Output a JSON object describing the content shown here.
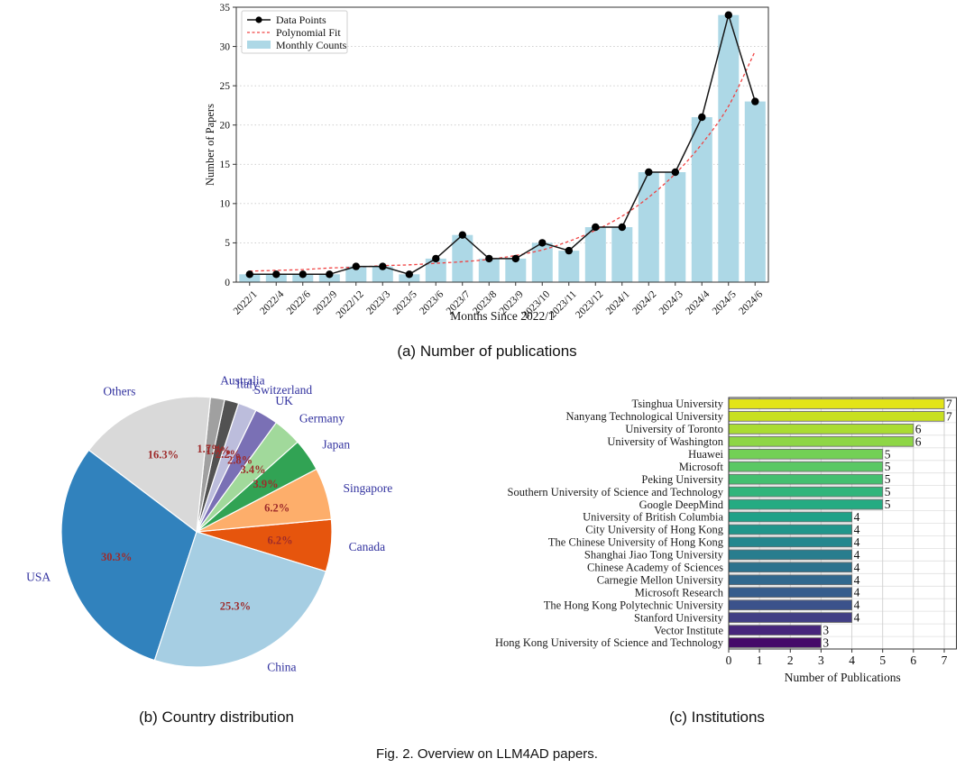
{
  "figure": {
    "caption_a": "(a) Number of publications",
    "caption_b": "(b) Country distribution",
    "caption_c": "(c) Institutions",
    "fig_caption": "Fig. 2. Overview on LLM4AD papers."
  },
  "chart_data": [
    {
      "id": "publications-per-month",
      "type": "bar",
      "xlabel": "Months Since 2022/1",
      "ylabel": "Number of Papers",
      "ylim": [
        0,
        35
      ],
      "yticks": [
        0,
        5,
        10,
        15,
        20,
        25,
        30,
        35
      ],
      "grid": "horizontal-dashed",
      "legend_position": "top-left",
      "categories": [
        "2022/1",
        "2022/4",
        "2022/6",
        "2022/9",
        "2022/12",
        "2023/3",
        "2023/5",
        "2023/6",
        "2023/7",
        "2023/8",
        "2023/9",
        "2023/10",
        "2023/11",
        "2023/12",
        "2024/1",
        "2024/2",
        "2024/3",
        "2024/4",
        "2024/5",
        "2024/6"
      ],
      "series": [
        {
          "name": "Monthly Counts",
          "kind": "bar",
          "color": "#add8e6",
          "values": [
            1,
            1,
            1,
            1,
            2,
            2,
            1,
            3,
            6,
            3,
            3,
            5,
            4,
            7,
            7,
            14,
            14,
            21,
            34,
            23
          ]
        },
        {
          "name": "Data Points",
          "kind": "line-marker",
          "color": "#161616",
          "values": [
            1,
            1,
            1,
            1,
            2,
            2,
            1,
            3,
            6,
            3,
            3,
            5,
            4,
            7,
            7,
            14,
            14,
            21,
            34,
            23
          ]
        },
        {
          "name": "Polynomial Fit",
          "kind": "line-dashed",
          "color": "#f04343",
          "values": [
            1.4,
            1.5,
            1.6,
            1.8,
            1.9,
            2.1,
            2.2,
            2.4,
            2.6,
            2.9,
            3.4,
            4.1,
            5.2,
            6.6,
            8.4,
            10.8,
            13.8,
            17.6,
            22.4,
            29.4
          ]
        }
      ]
    },
    {
      "id": "country-distribution",
      "type": "pie",
      "start_angle_deg": -17,
      "direction": "counterclockwise",
      "label_color": "#32329f",
      "pct_color": "#9e2b2b",
      "slices": [
        {
          "label": "Canada",
          "value": 6.2,
          "color": "#e6550d"
        },
        {
          "label": "Singapore",
          "value": 6.2,
          "color": "#fdae6b"
        },
        {
          "label": "Japan",
          "value": 3.9,
          "color": "#31a354"
        },
        {
          "label": "Germany",
          "value": 3.4,
          "color": "#a1d99b"
        },
        {
          "label": "UK",
          "value": 2.8,
          "color": "#7a70b5"
        },
        {
          "label": "Switzerland",
          "value": 2.2,
          "color": "#bcbddc"
        },
        {
          "label": "Italy",
          "value": 1.7,
          "color": "#525252"
        },
        {
          "label": "Australia",
          "value": 1.7,
          "color": "#a0a0a0"
        },
        {
          "label": "Others",
          "value": 16.3,
          "color": "#d9d9d9"
        },
        {
          "label": "USA",
          "value": 30.3,
          "color": "#3182bd"
        },
        {
          "label": "China",
          "value": 25.3,
          "color": "#a6cee3"
        }
      ]
    },
    {
      "id": "institutions",
      "type": "bar-horizontal",
      "xlabel": "Number of Publications",
      "xlim": [
        0,
        7.4
      ],
      "xticks": [
        0,
        1,
        2,
        3,
        4,
        5,
        6,
        7
      ],
      "bars": [
        {
          "name": "Tsinghua University",
          "value": 7,
          "color": "#e3e418"
        },
        {
          "name": "Nanyang Technological University",
          "value": 7,
          "color": "#c8e020"
        },
        {
          "name": "University of Toronto",
          "value": 6,
          "color": "#aadc32"
        },
        {
          "name": "University of Washington",
          "value": 6,
          "color": "#8ed645"
        },
        {
          "name": "Huawei",
          "value": 5,
          "color": "#73d056"
        },
        {
          "name": "Microsoft",
          "value": 5,
          "color": "#5ac864"
        },
        {
          "name": "Peking University",
          "value": 5,
          "color": "#44bf70"
        },
        {
          "name": "Southern University of Science and Technology",
          "value": 5,
          "color": "#31b57b"
        },
        {
          "name": "Google DeepMind",
          "value": 5,
          "color": "#25ab82"
        },
        {
          "name": "University of British Columbia",
          "value": 4,
          "color": "#1fa188"
        },
        {
          "name": "City University of Hong Kong",
          "value": 4,
          "color": "#21968b"
        },
        {
          "name": "The Chinese University of Hong Kong",
          "value": 4,
          "color": "#24878e"
        },
        {
          "name": "Shanghai Jiao Tong University",
          "value": 4,
          "color": "#287d8e"
        },
        {
          "name": "Chinese Academy of Sciences",
          "value": 4,
          "color": "#2c728e"
        },
        {
          "name": "Carnegie Mellon University",
          "value": 4,
          "color": "#31688e"
        },
        {
          "name": "Microsoft Research",
          "value": 4,
          "color": "#365d8d"
        },
        {
          "name": "The Hong Kong Polytechnic University",
          "value": 4,
          "color": "#3b528b"
        },
        {
          "name": "Stanford University",
          "value": 4,
          "color": "#423f85"
        },
        {
          "name": "Vector Institute",
          "value": 3,
          "color": "#47267c"
        },
        {
          "name": "Hong Kong University of Science and Technology",
          "value": 3,
          "color": "#450a69"
        }
      ]
    }
  ]
}
